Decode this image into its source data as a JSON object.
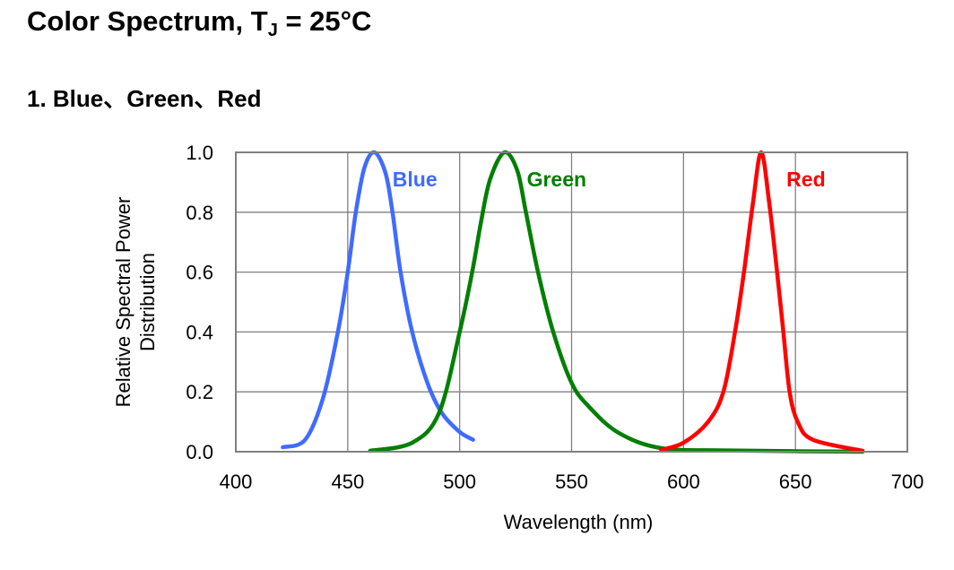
{
  "header": {
    "title_main": "Color Spectrum, T",
    "title_sub": "J",
    "title_tail": " = 25°C",
    "subtitle": "1. Blue、Green、Red"
  },
  "chart_data": {
    "type": "line",
    "title": "Color Spectrum, TJ = 25°C",
    "xlabel": "Wavelength (nm)",
    "ylabel": [
      "Relative Spectral Power",
      "Distribution"
    ],
    "xlim": [
      400,
      700
    ],
    "ylim": [
      0,
      1.0
    ],
    "xticks": [
      400,
      450,
      500,
      550,
      600,
      650,
      700
    ],
    "xtick_labels": [
      "400",
      "450",
      "500",
      "550",
      "600",
      "650",
      "700"
    ],
    "yticks": [
      0,
      0.2,
      0.4,
      0.6,
      0.8,
      1.0
    ],
    "ytick_labels": [
      "0.0",
      "0.2",
      "0.4",
      "0.6",
      "0.8",
      "1.0"
    ],
    "grid": true,
    "legend": "inline labels near peaks",
    "series": [
      {
        "name": "Blue",
        "color": "#3f6bff",
        "label_at": [
          470,
          0.91
        ],
        "x": [
          421,
          431,
          439,
          445.6,
          450,
          453.6,
          457.5,
          462,
          466.9,
          470,
          473.6,
          478.8,
          485.6,
          492,
          500,
          506
        ],
        "y": [
          0.015,
          0.04,
          0.18,
          0.4,
          0.6,
          0.8,
          0.95,
          1.0,
          0.93,
          0.8,
          0.6,
          0.4,
          0.23,
          0.13,
          0.066,
          0.04
        ]
      },
      {
        "name": "Green",
        "color": "#007f00",
        "label_at": [
          530,
          0.91
        ],
        "x": [
          460,
          478.8,
          490.8,
          500,
          505.6,
          509.6,
          513.6,
          520,
          525.7,
          529.6,
          535,
          541.8,
          550,
          557.8,
          571,
          590,
          620,
          680
        ],
        "y": [
          0.003,
          0.03,
          0.13,
          0.4,
          0.6,
          0.77,
          0.91,
          1.0,
          0.94,
          0.8,
          0.6,
          0.4,
          0.23,
          0.15,
          0.063,
          0.012,
          0.004,
          0.0
        ]
      },
      {
        "name": "Red",
        "color": "#ff0000",
        "label_at": [
          646,
          0.91
        ],
        "x": [
          590,
          600,
          611,
          617.8,
          623,
          627,
          631,
          634.7,
          638.3,
          641.8,
          644.6,
          647.4,
          651,
          657.8,
          680
        ],
        "y": [
          0.006,
          0.03,
          0.1,
          0.2,
          0.4,
          0.6,
          0.83,
          1.0,
          0.83,
          0.6,
          0.4,
          0.2,
          0.1,
          0.04,
          0.003
        ]
      }
    ]
  }
}
